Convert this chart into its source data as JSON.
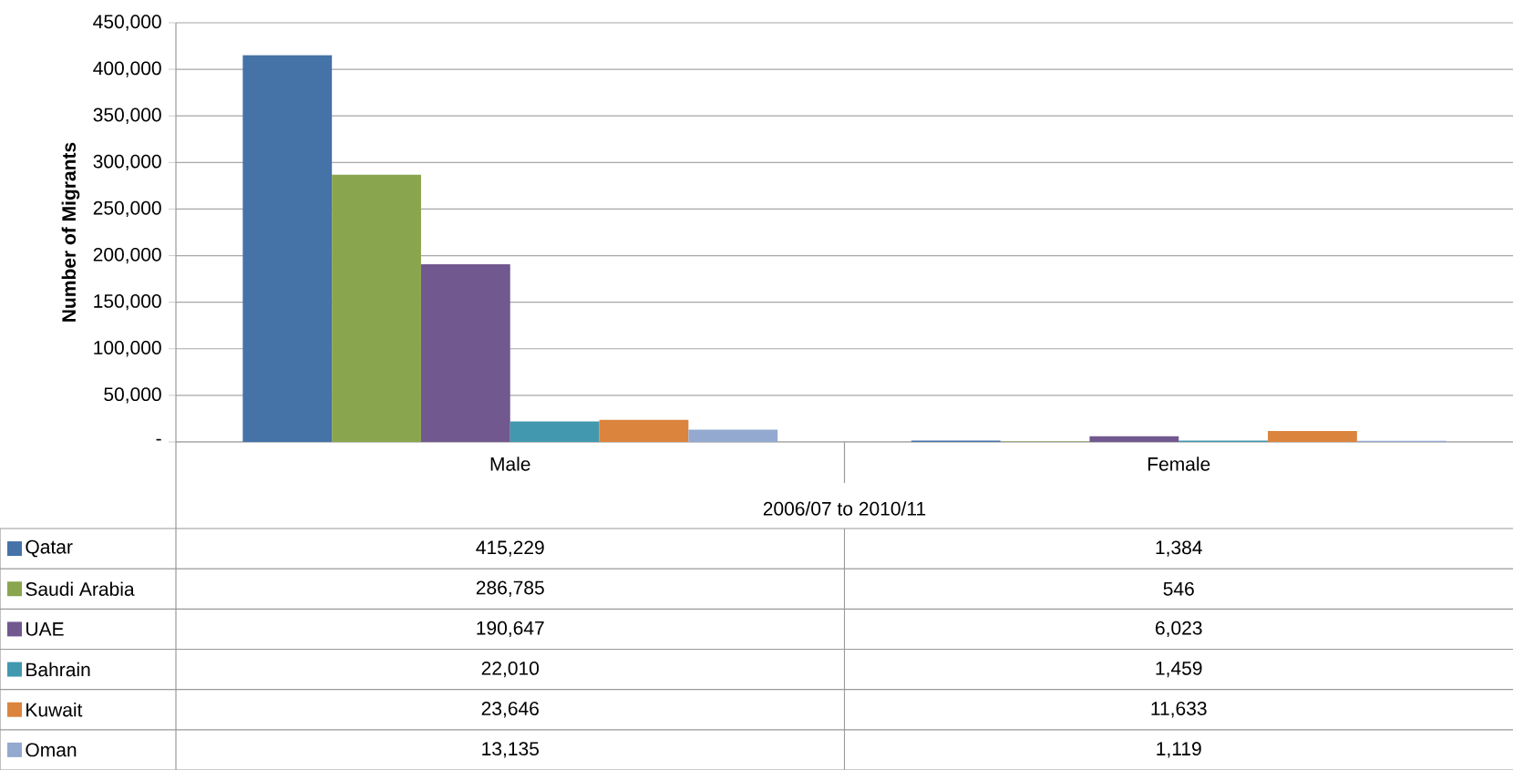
{
  "chart_data": {
    "type": "bar",
    "ylabel": "Number of Migrants",
    "xlabel": "2006/07 to 2010/11",
    "categories": [
      "Male",
      "Female"
    ],
    "series": [
      {
        "name": "Qatar",
        "color": "#4572a7",
        "values": [
          415229,
          1384
        ],
        "value_labels": [
          "415,229",
          "1,384"
        ]
      },
      {
        "name": "Saudi Arabia",
        "color": "#89a54e",
        "values": [
          286785,
          546
        ],
        "value_labels": [
          "286,785",
          "546"
        ]
      },
      {
        "name": "UAE",
        "color": "#71588f",
        "values": [
          190647,
          6023
        ],
        "value_labels": [
          "190,647",
          "6,023"
        ]
      },
      {
        "name": "Bahrain",
        "color": "#4198af",
        "values": [
          22010,
          1459
        ],
        "value_labels": [
          "22,010",
          "1,459"
        ]
      },
      {
        "name": "Kuwait",
        "color": "#db843d",
        "values": [
          23646,
          11633
        ],
        "value_labels": [
          "23,646",
          "11,633"
        ]
      },
      {
        "name": "Oman",
        "color": "#93a9cf",
        "values": [
          13135,
          1119
        ],
        "value_labels": [
          "13,135",
          "1,119"
        ]
      }
    ],
    "ylim": [
      0,
      450000
    ],
    "yticks": [
      {
        "value": 0,
        "label": "-"
      },
      {
        "value": 50000,
        "label": "50,000"
      },
      {
        "value": 100000,
        "label": "100,000"
      },
      {
        "value": 150000,
        "label": "150,000"
      },
      {
        "value": 200000,
        "label": "200,000"
      },
      {
        "value": 250000,
        "label": "250,000"
      },
      {
        "value": 300000,
        "label": "300,000"
      },
      {
        "value": 350000,
        "label": "350,000"
      },
      {
        "value": 400000,
        "label": "400,000"
      },
      {
        "value": 450000,
        "label": "450,000"
      }
    ],
    "grid": "y",
    "legend": "bottom"
  }
}
